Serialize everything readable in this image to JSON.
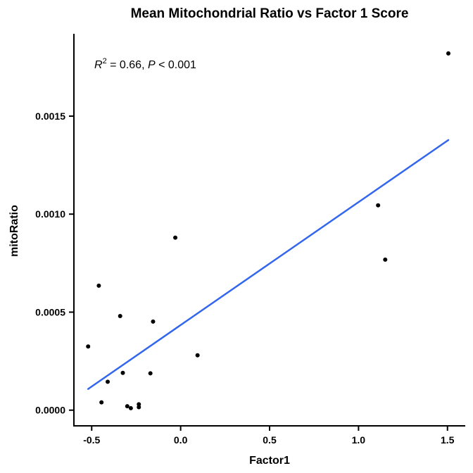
{
  "chart_data": {
    "type": "scatter",
    "title": "Mean Mitochondrial Ratio vs Factor 1 Score",
    "xlabel": "Factor1",
    "ylabel": "mitoRatio",
    "xlim": [
      -0.6,
      1.6
    ],
    "ylim": [
      -8e-05,
      0.00192
    ],
    "x_ticks": [
      -0.5,
      0.0,
      0.5,
      1.0,
      1.5
    ],
    "x_tick_labels": [
      "-0.5",
      "0.0",
      "0.5",
      "1.0",
      "1.5"
    ],
    "y_ticks": [
      0.0,
      0.0005,
      0.001,
      0.0015
    ],
    "y_tick_labels": [
      "0.0000",
      "0.0005",
      "0.0010",
      "0.0015"
    ],
    "grid": false,
    "points": [
      {
        "x": -0.52,
        "y": 0.000325
      },
      {
        "x": -0.46,
        "y": 0.000635
      },
      {
        "x": -0.445,
        "y": 4e-05
      },
      {
        "x": -0.41,
        "y": 0.000145
      },
      {
        "x": -0.34,
        "y": 0.00048
      },
      {
        "x": -0.325,
        "y": 0.00019
      },
      {
        "x": -0.3,
        "y": 2e-05
      },
      {
        "x": -0.28,
        "y": 1e-05
      },
      {
        "x": -0.235,
        "y": 3e-05
      },
      {
        "x": -0.235,
        "y": 1.5e-05
      },
      {
        "x": -0.17,
        "y": 0.000188
      },
      {
        "x": -0.155,
        "y": 0.000452
      },
      {
        "x": -0.03,
        "y": 0.00088
      },
      {
        "x": 0.095,
        "y": 0.00028
      },
      {
        "x": 1.11,
        "y": 0.001045
      },
      {
        "x": 1.15,
        "y": 0.000768
      },
      {
        "x": 1.505,
        "y": 0.00182
      }
    ],
    "fit_line": {
      "color": "#3366ee",
      "x": [
        -0.52,
        1.505
      ],
      "y": [
        0.000108,
        0.001378
      ]
    },
    "point_color": "#000000",
    "annotation": {
      "r_label": "R",
      "r_superscript": "2",
      "r_value": " = 0.66, ",
      "p_label": "P",
      "p_value": " < 0.001"
    }
  }
}
